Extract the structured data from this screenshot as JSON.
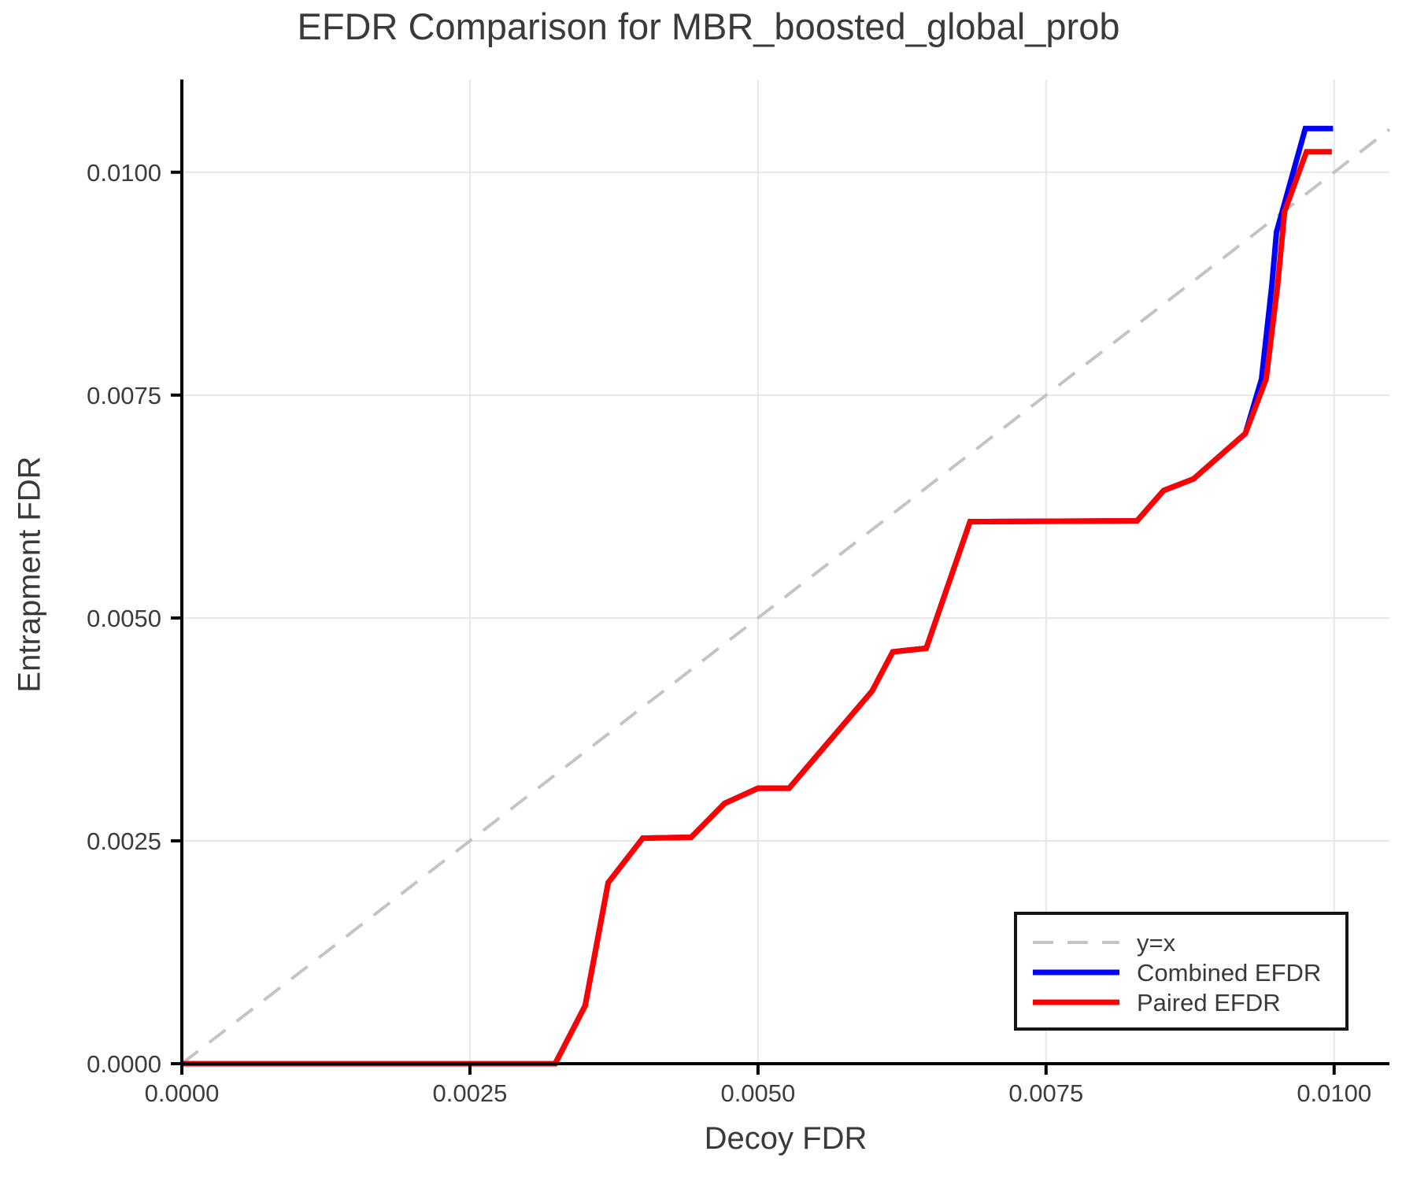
{
  "chart_data": {
    "type": "line",
    "title": "EFDR Comparison for MBR_boosted_global_prob",
    "xlabel": "Decoy FDR",
    "ylabel": "Entrapment FDR",
    "xlim": [
      0,
      0.01048
    ],
    "ylim": [
      0,
      0.01104
    ],
    "grid": true,
    "legend_position": "lower right",
    "x_ticks": [
      0,
      0.0025,
      0.005,
      0.0075,
      0.01
    ],
    "x_tick_labels": [
      "0.0000",
      "0.0025",
      "0.0050",
      "0.0075",
      "0.0100"
    ],
    "y_ticks": [
      0,
      0.0025,
      0.005,
      0.0075,
      0.01
    ],
    "y_tick_labels": [
      "0.0000",
      "0.0025",
      "0.0050",
      "0.0075",
      "0.0100"
    ],
    "reference_line": {
      "name": "y=x",
      "style": "dashed",
      "color": "#c4c4c4",
      "points": [
        [
          0,
          0
        ],
        [
          0.01048,
          0.01048
        ]
      ]
    },
    "series": [
      {
        "name": "Combined EFDR",
        "color": "#0000ff",
        "points": [
          [
            0.0,
            0.0
          ],
          [
            0.00324,
            0.0
          ],
          [
            0.0035,
            0.00065
          ],
          [
            0.0037,
            0.00203
          ],
          [
            0.004,
            0.00253
          ],
          [
            0.00442,
            0.00254
          ],
          [
            0.00471,
            0.00292
          ],
          [
            0.005,
            0.00309
          ],
          [
            0.00527,
            0.00309
          ],
          [
            0.00599,
            0.00418
          ],
          [
            0.00617,
            0.00462
          ],
          [
            0.00646,
            0.00466
          ],
          [
            0.00684,
            0.00608
          ],
          [
            0.00829,
            0.00609
          ],
          [
            0.00852,
            0.00643
          ],
          [
            0.00878,
            0.00656
          ],
          [
            0.00923,
            0.00707
          ],
          [
            0.00937,
            0.00768
          ],
          [
            0.00946,
            0.00874
          ],
          [
            0.0095,
            0.00933
          ],
          [
            0.00975,
            0.01049
          ],
          [
            0.00999,
            0.01049
          ]
        ]
      },
      {
        "name": "Paired EFDR",
        "color": "#ff0000",
        "points": [
          [
            0.0,
            0.0
          ],
          [
            0.00324,
            0.0
          ],
          [
            0.0035,
            0.00065
          ],
          [
            0.0037,
            0.00203
          ],
          [
            0.004,
            0.00253
          ],
          [
            0.00442,
            0.00254
          ],
          [
            0.00471,
            0.00292
          ],
          [
            0.005,
            0.00309
          ],
          [
            0.00527,
            0.00309
          ],
          [
            0.00599,
            0.00418
          ],
          [
            0.00617,
            0.00462
          ],
          [
            0.00646,
            0.00466
          ],
          [
            0.00684,
            0.00608
          ],
          [
            0.00829,
            0.00609
          ],
          [
            0.00852,
            0.00643
          ],
          [
            0.00878,
            0.00656
          ],
          [
            0.00923,
            0.00707
          ],
          [
            0.00941,
            0.00768
          ],
          [
            0.00951,
            0.00874
          ],
          [
            0.00957,
            0.00956
          ],
          [
            0.00976,
            0.01023
          ],
          [
            0.00998,
            0.01023
          ]
        ]
      }
    ]
  },
  "legend": {
    "items": [
      {
        "label": "y=x",
        "color": "#c4c4c4",
        "dashed": true
      },
      {
        "label": "Combined EFDR",
        "color": "#0000ff",
        "dashed": false
      },
      {
        "label": "Paired EFDR",
        "color": "#ff0000",
        "dashed": false
      }
    ]
  },
  "style": {
    "grid_color": "#e7e7e7",
    "spine_color": "#000000",
    "tick_color": "#000000",
    "text_color": "#3c3c3c"
  }
}
